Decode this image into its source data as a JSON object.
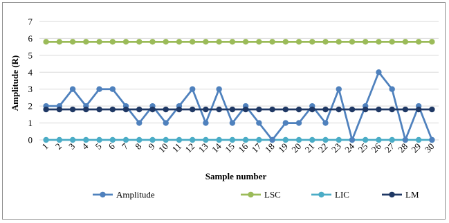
{
  "chart_data": {
    "type": "line",
    "title": "",
    "xlabel": "Sample number",
    "ylabel": "Amplitude (R)",
    "ylim": [
      0,
      7
    ],
    "yticks": [
      "0",
      "1",
      "2",
      "3",
      "4",
      "5",
      "6",
      "7"
    ],
    "grid": "horizontal",
    "legend_position": "bottom",
    "categories": [
      "1",
      "2",
      "3",
      "4",
      "5",
      "6",
      "7",
      "8",
      "9",
      "10",
      "11",
      "12",
      "13",
      "14",
      "15",
      "16",
      "17",
      "18",
      "19",
      "20",
      "21",
      "22",
      "23",
      "24",
      "25",
      "26",
      "27",
      "28",
      "29",
      "30"
    ],
    "series": [
      {
        "name": "Amplitude",
        "color": "#4f81bd",
        "values": [
          2,
          2,
          3,
          2,
          3,
          3,
          2,
          1,
          2,
          1,
          2,
          3,
          1,
          3,
          1,
          2,
          1,
          0,
          1,
          1,
          2,
          1,
          3,
          0,
          2,
          4,
          3,
          0,
          2,
          0
        ]
      },
      {
        "name": "LSC",
        "color": "#9bbb59",
        "values": [
          5.8,
          5.8,
          5.8,
          5.8,
          5.8,
          5.8,
          5.8,
          5.8,
          5.8,
          5.8,
          5.8,
          5.8,
          5.8,
          5.8,
          5.8,
          5.8,
          5.8,
          5.8,
          5.8,
          5.8,
          5.8,
          5.8,
          5.8,
          5.8,
          5.8,
          5.8,
          5.8,
          5.8,
          5.8,
          5.8
        ]
      },
      {
        "name": "LIC",
        "color": "#4bacc6",
        "values": [
          0,
          0,
          0,
          0,
          0,
          0,
          0,
          0,
          0,
          0,
          0,
          0,
          0,
          0,
          0,
          0,
          0,
          0,
          0,
          0,
          0,
          0,
          0,
          0,
          0,
          0,
          0,
          0,
          0,
          0
        ]
      },
      {
        "name": "LM",
        "color": "#1f3864",
        "values": [
          1.8,
          1.8,
          1.8,
          1.8,
          1.8,
          1.8,
          1.8,
          1.8,
          1.8,
          1.8,
          1.8,
          1.8,
          1.8,
          1.8,
          1.8,
          1.8,
          1.8,
          1.8,
          1.8,
          1.8,
          1.8,
          1.8,
          1.8,
          1.8,
          1.8,
          1.8,
          1.8,
          1.8,
          1.8,
          1.8
        ]
      }
    ]
  }
}
